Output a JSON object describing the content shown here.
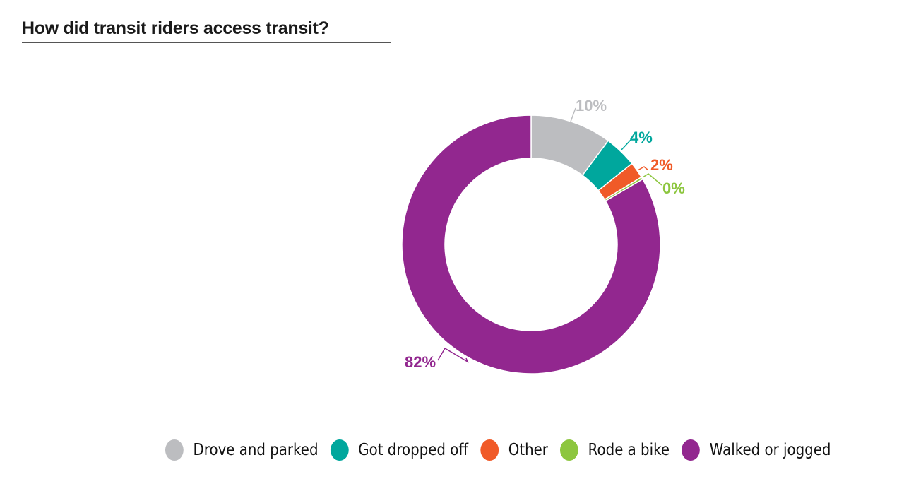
{
  "title": "How did transit riders access transit?",
  "chart_data": {
    "type": "pie",
    "subtype": "donut",
    "title": "How did transit riders access transit?",
    "categories": [
      "Drove and parked",
      "Got dropped off",
      "Other",
      "Rode a bike",
      "Walked or jogged"
    ],
    "values": [
      10,
      4,
      2,
      0,
      82
    ],
    "labels": [
      "10%",
      "4%",
      "2%",
      "0%",
      "82%"
    ],
    "colors": [
      "#bcbdc0",
      "#00a79d",
      "#f05a28",
      "#8dc63f",
      "#92278f"
    ],
    "legend_position": "bottom-right",
    "start_angle_deg": 0,
    "direction": "clockwise"
  },
  "legend": [
    {
      "label": "Drove and parked",
      "color": "#bcbdc0"
    },
    {
      "label": "Got dropped off",
      "color": "#00a79d"
    },
    {
      "label": "Other",
      "color": "#f05a28"
    },
    {
      "label": "Rode a bike",
      "color": "#8dc63f"
    },
    {
      "label": "Walked or jogged",
      "color": "#92278f"
    }
  ]
}
